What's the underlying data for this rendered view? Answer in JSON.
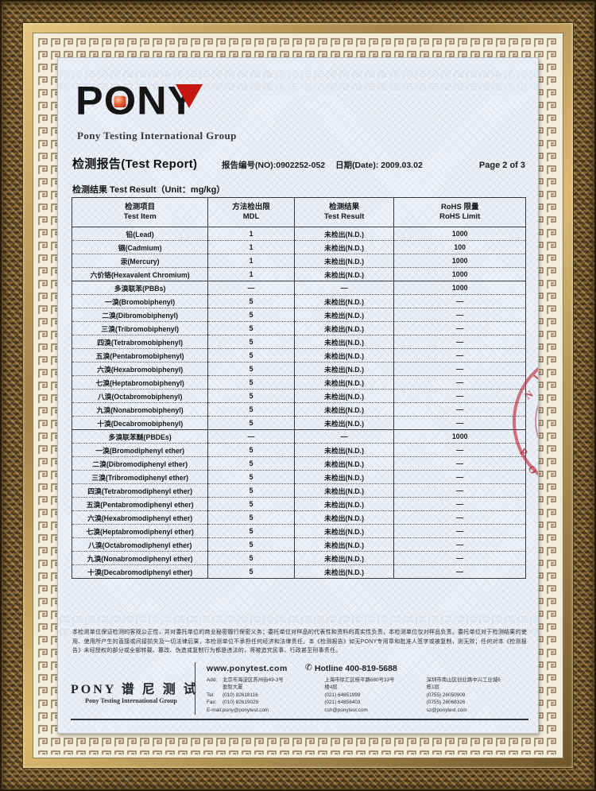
{
  "logo": {
    "brand_p": "P",
    "brand_o": "O",
    "brand_n": "N",
    "brand_y": "Y",
    "subtitle": "Pony Testing International Group",
    "accent_red": "#c3170f",
    "letter_black": "#151515"
  },
  "header": {
    "title": "检测报告(Test Report)",
    "report_no": "报告编号(NO):0902252-052",
    "date": "日期(Date): 2009.03.02",
    "page": "Page 2 of 3"
  },
  "section_label": "检测结果 Test Result（Unit：mg/kg）",
  "table": {
    "headers": [
      {
        "cn": "检测项目",
        "en": "Test Item"
      },
      {
        "cn": "方法检出限",
        "en": "MDL"
      },
      {
        "cn": "检测结果",
        "en": "Test Result"
      },
      {
        "cn": "RoHS 限量",
        "en": "RoHS Limit"
      }
    ],
    "rows": [
      {
        "item": "铅(Lead)",
        "mdl": "1",
        "result": "未检出(N.D.)",
        "limit": "1000",
        "group": false
      },
      {
        "item": "镉(Cadmium)",
        "mdl": "1",
        "result": "未检出(N.D.)",
        "limit": "100",
        "group": false
      },
      {
        "item": "汞(Mercury)",
        "mdl": "1",
        "result": "未检出(N.D.)",
        "limit": "1000",
        "group": false
      },
      {
        "item": "六价铬(Hexavalent Chromium)",
        "mdl": "1",
        "result": "未检出(N.D.)",
        "limit": "1000",
        "group": false
      },
      {
        "item": "多溴联苯(PBBs)",
        "mdl": "—",
        "result": "—",
        "limit": "1000",
        "group": true
      },
      {
        "item": "一溴(Bromobiphenyl)",
        "mdl": "5",
        "result": "未检出(N.D.)",
        "limit": "—",
        "group": false
      },
      {
        "item": "二溴(Dibromobiphenyl)",
        "mdl": "5",
        "result": "未检出(N.D.)",
        "limit": "—",
        "group": false
      },
      {
        "item": "三溴(Tribromobiphenyl)",
        "mdl": "5",
        "result": "未检出(N.D.)",
        "limit": "—",
        "group": false
      },
      {
        "item": "四溴(Tetrabromobiphenyl)",
        "mdl": "5",
        "result": "未检出(N.D.)",
        "limit": "—",
        "group": false
      },
      {
        "item": "五溴(Pentabromobiphenyl)",
        "mdl": "5",
        "result": "未检出(N.D.)",
        "limit": "—",
        "group": false
      },
      {
        "item": "六溴(Hexabromobiphenyl)",
        "mdl": "5",
        "result": "未检出(N.D.)",
        "limit": "—",
        "group": false
      },
      {
        "item": "七溴(Heptabromobiphenyl)",
        "mdl": "5",
        "result": "未检出(N.D.)",
        "limit": "—",
        "group": false
      },
      {
        "item": "八溴(Octabromobiphenyl)",
        "mdl": "5",
        "result": "未检出(N.D.)",
        "limit": "—",
        "group": false
      },
      {
        "item": "九溴(Nonabromobiphenyl)",
        "mdl": "5",
        "result": "未检出(N.D.)",
        "limit": "—",
        "group": false
      },
      {
        "item": "十溴(Decabromobiphenyl)",
        "mdl": "5",
        "result": "未检出(N.D.)",
        "limit": "—",
        "group": false
      },
      {
        "item": "多溴联苯醚(PBDEs)",
        "mdl": "—",
        "result": "—",
        "limit": "1000",
        "group": true
      },
      {
        "item": "一溴(Bromodiphenyl ether)",
        "mdl": "5",
        "result": "未检出(N.D.)",
        "limit": "—",
        "group": false
      },
      {
        "item": "二溴(Dibromodiphenyl ether)",
        "mdl": "5",
        "result": "未检出(N.D.)",
        "limit": "—",
        "group": false
      },
      {
        "item": "三溴(Tribromodiphenyl ether)",
        "mdl": "5",
        "result": "未检出(N.D.)",
        "limit": "—",
        "group": false
      },
      {
        "item": "四溴(Tetrabromodiphenyl ether)",
        "mdl": "5",
        "result": "未检出(N.D.)",
        "limit": "—",
        "group": false
      },
      {
        "item": "五溴(Pentabromodiphenyl ether)",
        "mdl": "5",
        "result": "未检出(N.D.)",
        "limit": "—",
        "group": false
      },
      {
        "item": "六溴(Hexabromodiphenyl ether)",
        "mdl": "5",
        "result": "未检出(N.D.)",
        "limit": "—",
        "group": false
      },
      {
        "item": "七溴(Heptabromodiphenyl ether)",
        "mdl": "5",
        "result": "未检出(N.D.)",
        "limit": "—",
        "group": false
      },
      {
        "item": "八溴(Octabromodiphenyl ether)",
        "mdl": "5",
        "result": "未检出(N.D.)",
        "limit": "—",
        "group": false
      },
      {
        "item": "九溴(Nonabromodiphenyl ether)",
        "mdl": "5",
        "result": "未检出(N.D.)",
        "limit": "—",
        "group": false
      },
      {
        "item": "十溴(Decabromodiphenyl ether)",
        "mdl": "5",
        "result": "未检出(N.D.)",
        "limit": "—",
        "group": false
      }
    ]
  },
  "stamp": {
    "letters": [
      "I",
      "N",
      "P",
      "O"
    ],
    "color": "#bb2c3e"
  },
  "disclaimer": "本检测单位保证检测的客观公正性，并对委托单位的商业秘密履行保密义务；委托单位对样品的代表性和资料的真实性负责，本检测单位仅对样品负责。委托单位对于检测结果的使用、使用所产生的直接或间接损失及一切法律后果，本检测单位不承担任何经济和法律责任。本《检测报告》如无PONY专用章和批准人签字或被复制，则无效；任何对本《检测报告》未经授权的部分或全部转载、篡改、伪造或复制行为都是违法的，将被追究民事、行政甚至刑事责任。",
  "footer": {
    "brand_cn": "PONY 谱 尼 测 试",
    "brand_en": "Pony Testing International Group",
    "website": "www.ponytest.com",
    "hotline": "Hotline 400-819-5688",
    "labels": [
      "Add:",
      "",
      "Tel:",
      "Fax:",
      "E-mail:"
    ],
    "offices": [
      {
        "lines": [
          "北京市海淀区苏州街49-3号",
          "盈智大厦",
          "(010) 82618116",
          "(010) 82619029",
          "pony@ponytest.com"
        ]
      },
      {
        "lines": [
          "上海市徐汇区桂平路680号33号",
          "楼4层",
          "(021) 64851999",
          "(021) 64856403",
          "csh@ponytest.com"
        ]
      },
      {
        "lines": [
          "深圳市南山区创业路中兴工业城6",
          "栋1层",
          "(0755) 26050909",
          "(0755) 26068326",
          "sz@ponytest.com"
        ]
      }
    ]
  }
}
